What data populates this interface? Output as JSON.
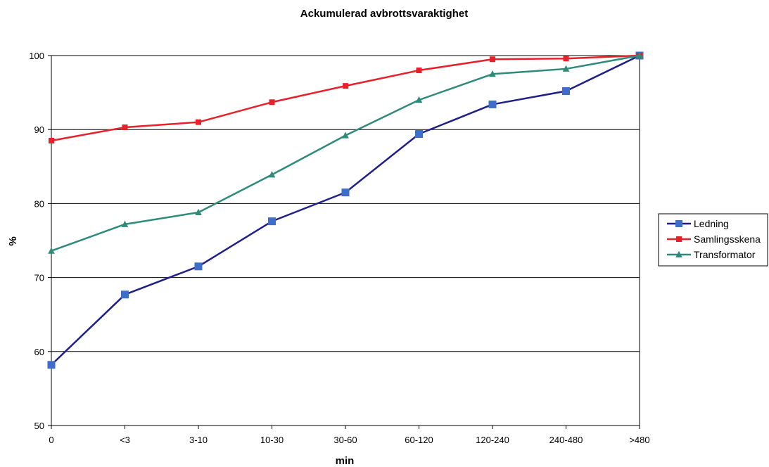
{
  "chart_data": {
    "type": "line",
    "title": "Ackumulerad avbrottsvaraktighet",
    "xlabel": "min",
    "ylabel": "%",
    "categories": [
      "0",
      "<3",
      "3-10",
      "10-30",
      "30-60",
      "60-120",
      "120-240",
      "240-480",
      ">480"
    ],
    "ylim": [
      50,
      100
    ],
    "yticks": [
      50,
      60,
      70,
      80,
      90,
      100
    ],
    "grid": true,
    "legend_position": "right",
    "series": [
      {
        "name": "Ledning",
        "color": "#1f1f8c",
        "marker_color": "#3d6ec9",
        "marker": "square",
        "values": [
          58.2,
          67.7,
          71.5,
          77.6,
          81.5,
          89.4,
          93.4,
          95.2,
          100
        ]
      },
      {
        "name": "Samlingsskena",
        "color": "#e8202a",
        "marker_color": "#e8202a",
        "marker": "square",
        "values": [
          88.5,
          90.3,
          91.0,
          93.7,
          95.9,
          98.0,
          99.5,
          99.6,
          100
        ]
      },
      {
        "name": "Transformator",
        "color": "#2e8b7a",
        "marker_color": "#2e8b7a",
        "marker": "triangle",
        "values": [
          73.6,
          77.2,
          78.8,
          83.9,
          89.2,
          94.0,
          97.5,
          98.2,
          100
        ]
      }
    ]
  }
}
